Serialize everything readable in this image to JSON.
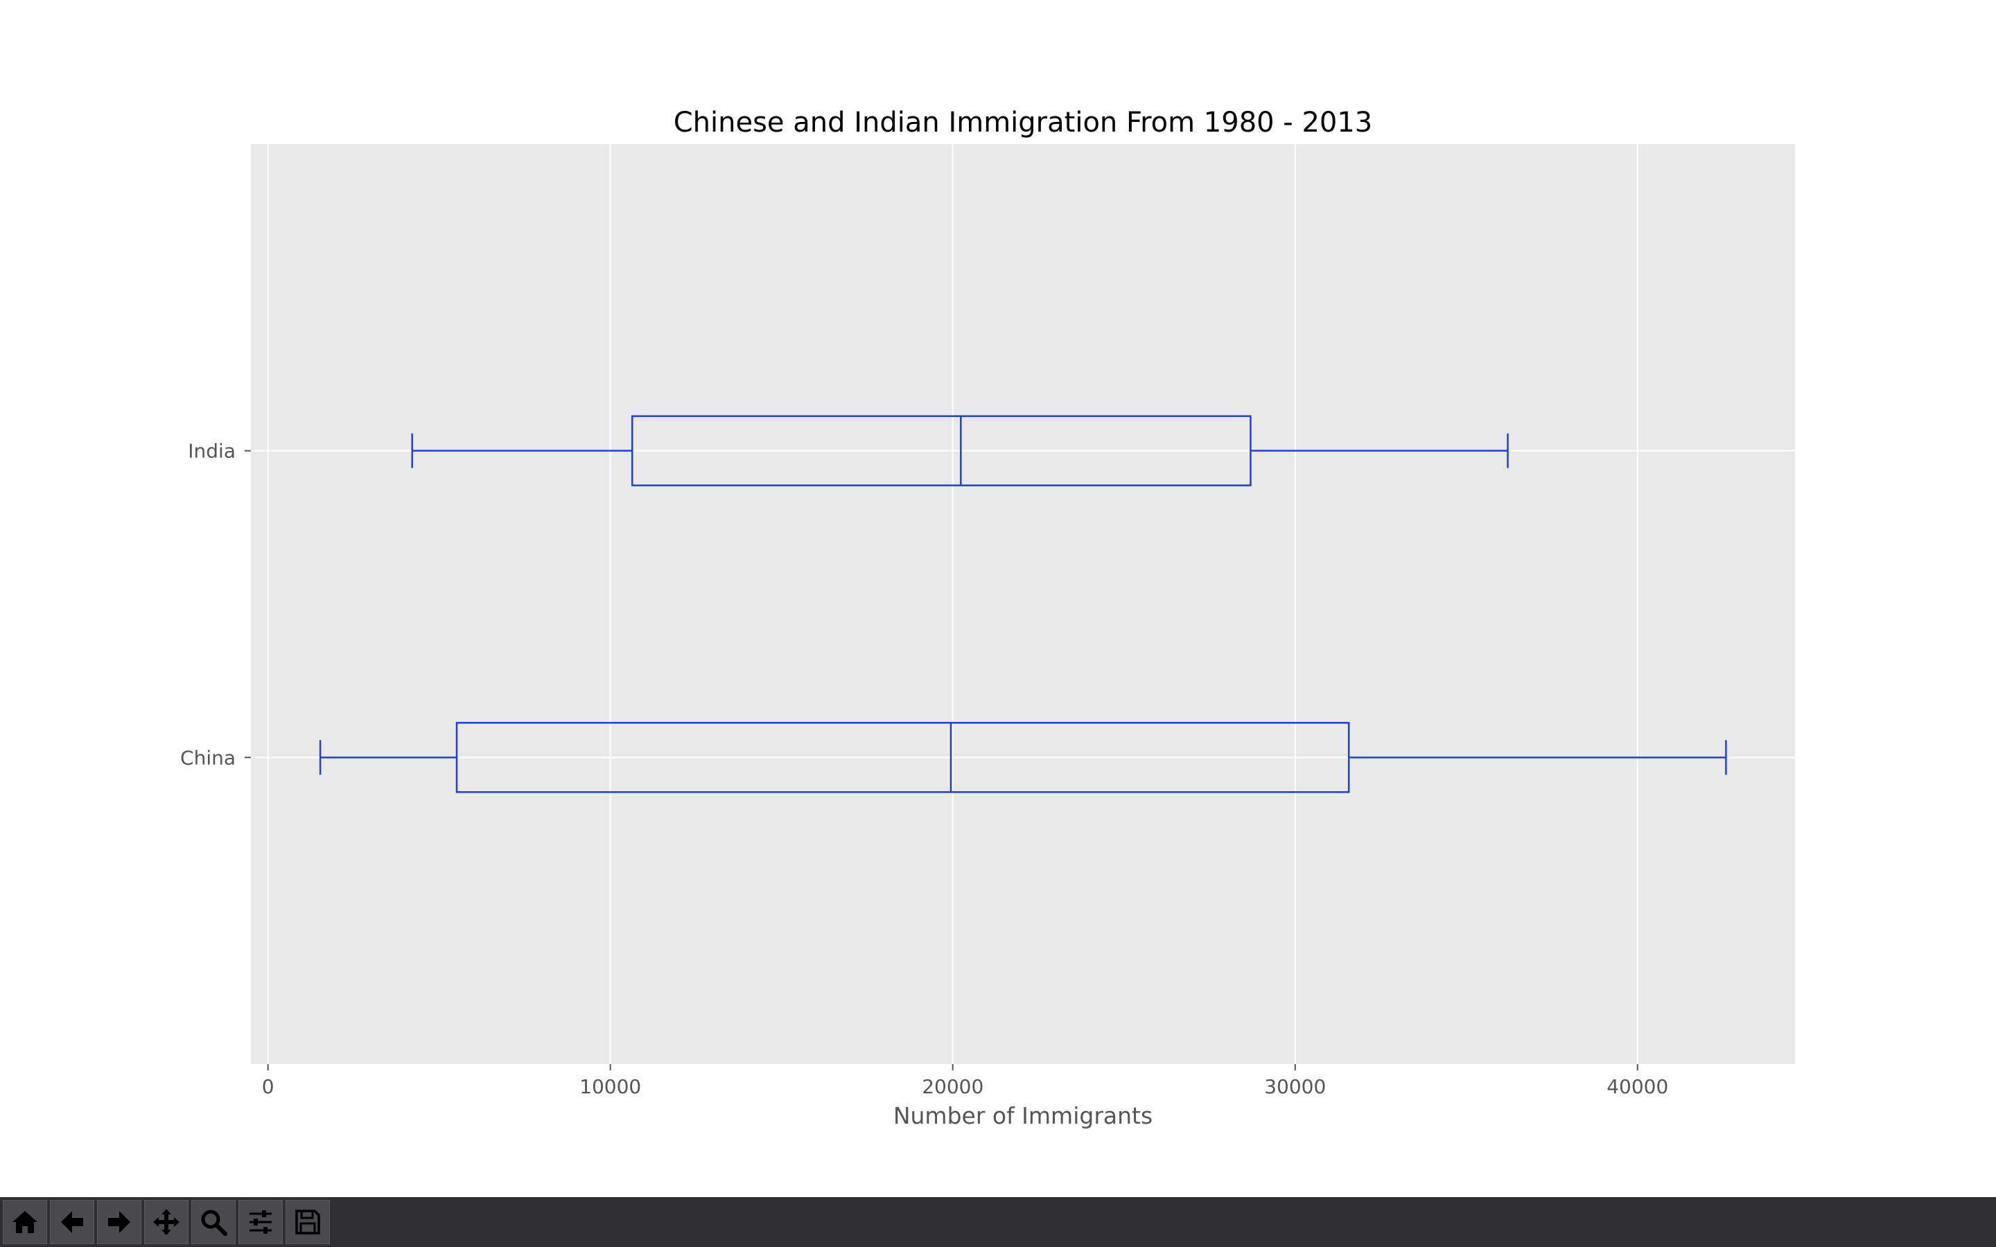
{
  "window": {
    "toolbar": [
      {
        "id": "home",
        "icon": "home-icon"
      },
      {
        "id": "back",
        "icon": "arrow-left-icon"
      },
      {
        "id": "forward",
        "icon": "arrow-right-icon"
      },
      {
        "id": "pan",
        "icon": "move-icon"
      },
      {
        "id": "zoom",
        "icon": "magnifier-icon"
      },
      {
        "id": "configure",
        "icon": "sliders-icon"
      },
      {
        "id": "save",
        "icon": "floppy-disk-icon"
      }
    ]
  },
  "colors": {
    "box": "#1f3fd6",
    "plot_background": "#e9e9e9",
    "grid": "#ffffff",
    "toolbar": "#303034"
  },
  "chart_data": {
    "type": "boxplot",
    "orientation": "horizontal",
    "title": "Chinese and Indian Immigration From 1980 - 2013",
    "xlabel": "Number of Immigrants",
    "ylabel": "",
    "xlim": [
      -500,
      44600
    ],
    "xticks": [
      0,
      10000,
      20000,
      30000,
      40000
    ],
    "grid": true,
    "categories": [
      "China",
      "India"
    ],
    "boxes": [
      {
        "name": "China",
        "whisker_low": 1527,
        "q1": 5512,
        "median": 19945,
        "q3": 31568,
        "whisker_high": 42584
      },
      {
        "name": "India",
        "whisker_low": 4211,
        "q1": 10638,
        "median": 20235,
        "q3": 28699,
        "whisker_high": 36210
      }
    ]
  }
}
